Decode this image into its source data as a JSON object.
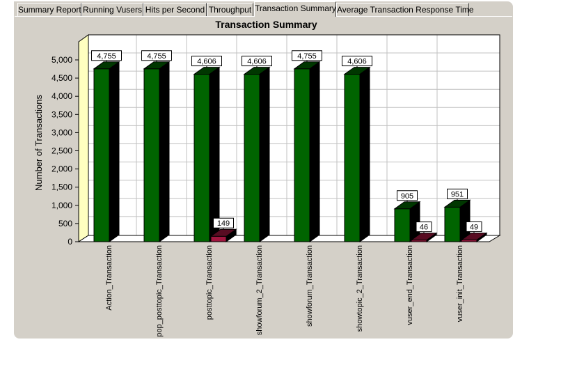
{
  "tabs": [
    {
      "label": "Summary Report",
      "active": false
    },
    {
      "label": "Running Vusers",
      "active": false
    },
    {
      "label": "Hits per Second",
      "active": false
    },
    {
      "label": "Throughput",
      "active": false
    },
    {
      "label": "Transaction Summary",
      "active": true
    },
    {
      "label": "Average Transaction Response Time",
      "active": false
    }
  ],
  "colors": {
    "series_green": "#006400",
    "series_red": "#a0153e",
    "wall": "#ffffc0",
    "panel": "#d4d0c8"
  },
  "chart_data": {
    "type": "bar",
    "title": "Transaction Summary",
    "ylabel": "Number of Transactions",
    "xlabel": "",
    "ylim": [
      0,
      5000
    ],
    "yticks": [
      0,
      500,
      1000,
      1500,
      2000,
      2500,
      3000,
      3500,
      4000,
      4500,
      5000
    ],
    "ytick_labels": [
      "0",
      "500",
      "1,000",
      "1,500",
      "2,000",
      "2,500",
      "3,000",
      "3,500",
      "4,000",
      "4,500",
      "5,000"
    ],
    "grid": true,
    "categories": [
      "Action_Transaction",
      "pop_posttopic_Transaction",
      "posttopic_Transaction",
      "showforum_2_Transaction",
      "showforum_Transaction",
      "showtopic_2_Transaction",
      "vuser_end_Transaction",
      "vuser_init_Transaction"
    ],
    "series": [
      {
        "values": [
          4755,
          4755,
          4606,
          4606,
          4755,
          4606,
          905,
          951
        ],
        "labels": [
          "4,755",
          "4,755",
          "4,606",
          "4,606",
          "4,755",
          "4,606",
          "905",
          "951"
        ]
      },
      {
        "values": [
          null,
          null,
          149,
          null,
          null,
          null,
          46,
          49
        ],
        "labels": [
          "",
          "",
          "149",
          "",
          "",
          "",
          "46",
          "49"
        ]
      }
    ]
  }
}
